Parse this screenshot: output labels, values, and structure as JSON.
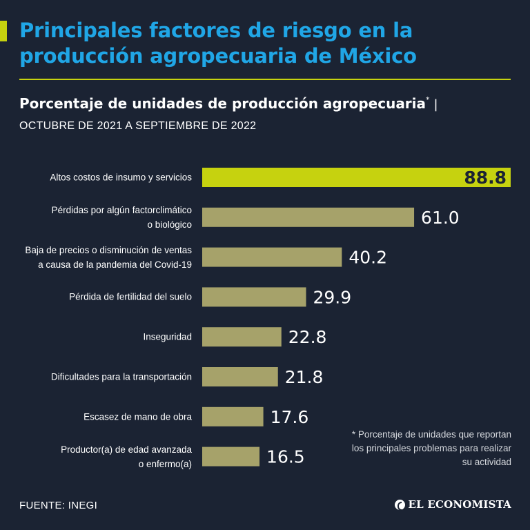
{
  "header": {
    "title_line1": "Principales factores de riesgo en la",
    "title_line2": "producción agropecuaria de México",
    "subtitle": "Porcentaje de unidades de producción agropecuaria",
    "subtitle_mark": "*",
    "subtitle_pipe": "|",
    "period": "OCTUBRE DE 2021 A SEPTIEMBRE DE 2022"
  },
  "chart_data": {
    "type": "bar",
    "orientation": "horizontal",
    "title": "Principales factores de riesgo en la producción agropecuaria de México",
    "subtitle": "Porcentaje de unidades de producción agropecuaria",
    "xlim": [
      0,
      88.8
    ],
    "categories": [
      "Altos costos de insumo y servicios",
      "Pérdidas por algún factorclimático o biológico",
      "Baja de precios o disminución de ventas a causa de la pandemia del Covid-19",
      "Pérdida de fertilidad del suelo",
      "Inseguridad",
      "Dificultades para la transportación",
      "Escasez de mano de obra",
      "Productor(a) de edad avanzada o enfermo(a)"
    ],
    "label_lines": [
      [
        "Altos costos de insumo y servicios"
      ],
      [
        "Pérdidas por algún factorclimático",
        "o biológico"
      ],
      [
        "Baja de precios o disminución de ventas",
        "a causa de la pandemia del Covid-19"
      ],
      [
        "Pérdida de fertilidad del suelo"
      ],
      [
        "Inseguridad"
      ],
      [
        "Dificultades para la transportación"
      ],
      [
        "Escasez de mano de obra"
      ],
      [
        "Productor(a) de edad avanzada",
        "o enfermo(a)"
      ]
    ],
    "values": [
      88.8,
      61.0,
      40.2,
      29.9,
      22.8,
      21.8,
      17.6,
      16.5
    ],
    "value_labels": [
      "88.8",
      "61.0",
      "40.2",
      "29.9",
      "22.8",
      "21.8",
      "17.6",
      "16.5"
    ],
    "highlight_index": 0
  },
  "colors": {
    "background": "#1b2333",
    "highlight_bar": "#c6d20f",
    "bar": "#a6a26a",
    "title": "#20a6e6",
    "text": "#ffffff"
  },
  "footnote": "* Porcentaje de unidades que reportan los principales problemas para realizar su actividad",
  "source": "FUENTE: INEGI",
  "brand": "EL ECONOMISTA"
}
